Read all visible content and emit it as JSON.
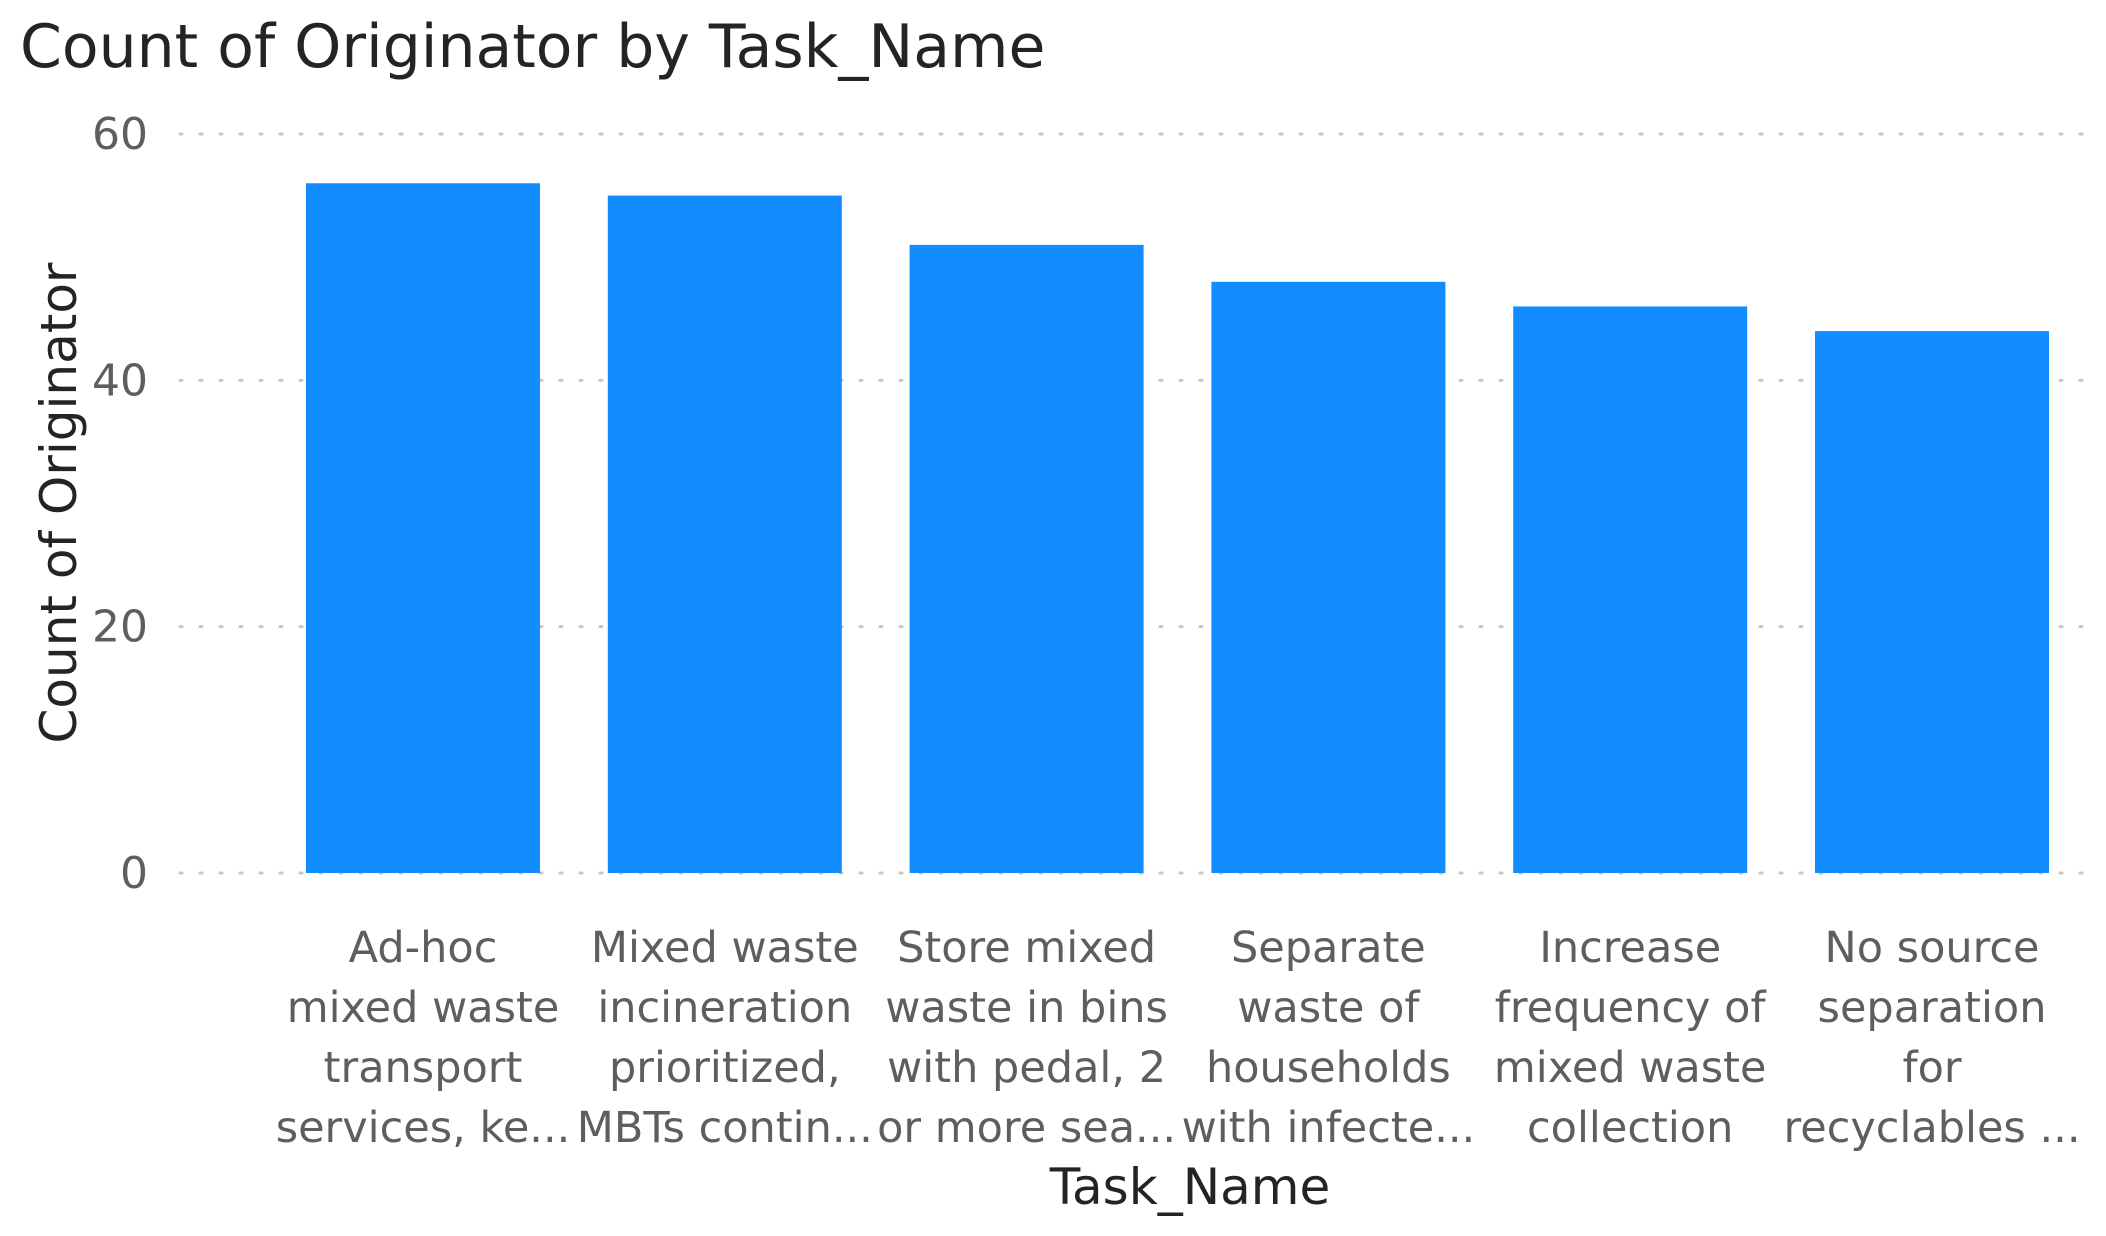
{
  "chart_data": {
    "type": "bar",
    "title": "Count of Originator by Task_Name",
    "xlabel": "Task_Name",
    "ylabel": "Count of Originator",
    "ylim": [
      0,
      60
    ],
    "yticks": [
      "0",
      "20",
      "40",
      "60"
    ],
    "grid": true,
    "categories": [
      [
        "Ad-hoc",
        "mixed waste",
        "transport",
        "services, ke..."
      ],
      [
        "Mixed waste",
        "incineration",
        "prioritized,",
        "MBTs contin..."
      ],
      [
        "Store mixed",
        "waste in bins",
        "with pedal, 2",
        "or more sea..."
      ],
      [
        "Separate",
        "waste of",
        "households",
        "with infecte..."
      ],
      [
        "Increase",
        "frequency of",
        "mixed waste",
        "collection"
      ],
      [
        "No source",
        "separation",
        "for",
        "recyclables ..."
      ]
    ],
    "values": [
      56,
      55,
      51,
      48,
      46,
      44
    ],
    "bar_color": "#118DFF"
  }
}
